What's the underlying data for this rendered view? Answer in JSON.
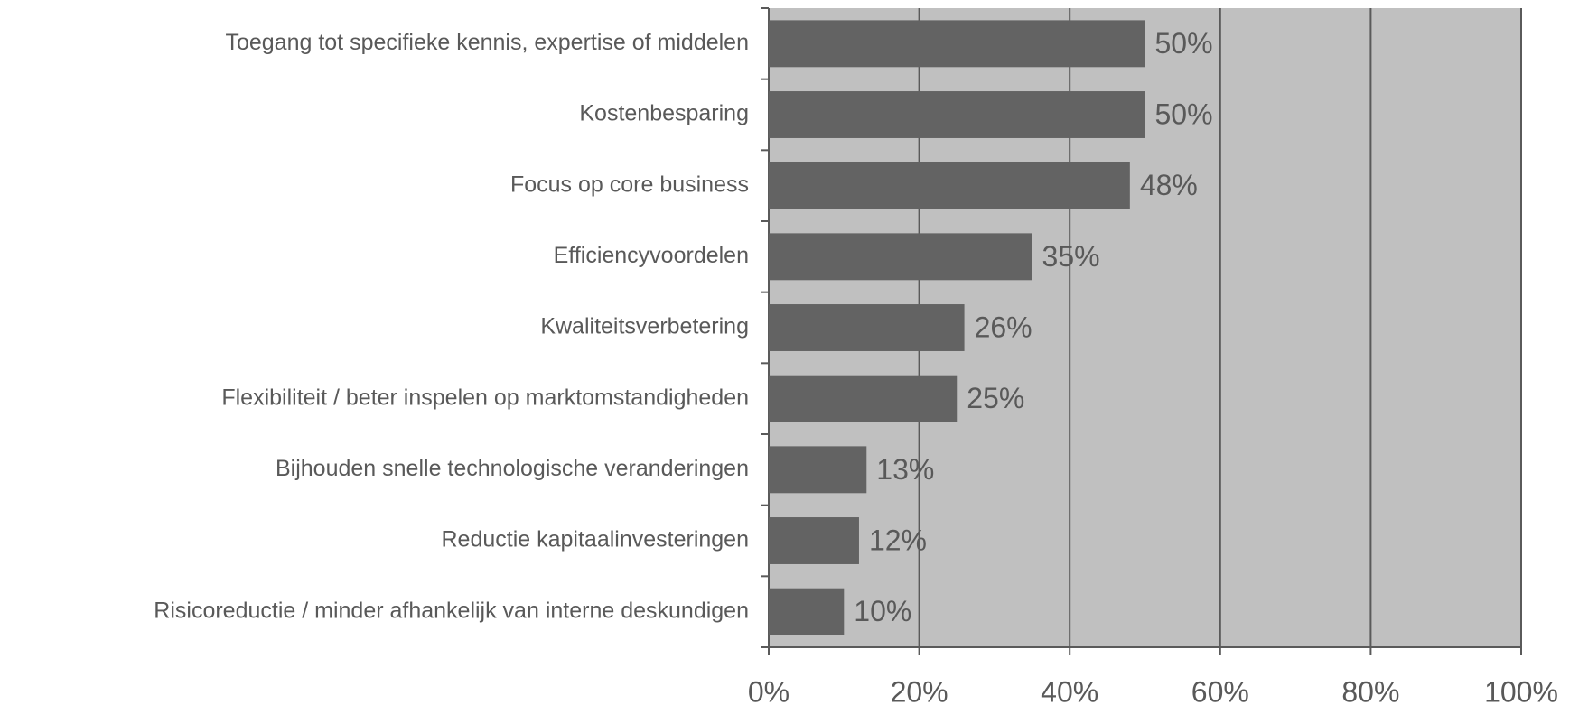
{
  "chart_data": {
    "type": "bar",
    "orientation": "horizontal",
    "categories": [
      "Toegang tot specifieke kennis, expertise of middelen",
      "Kostenbesparing",
      "Focus op core business",
      "Efficiencyvoordelen",
      "Kwaliteitsverbetering",
      "Flexibiliteit / beter inspelen op marktomstandigheden",
      "Bijhouden snelle technologische veranderingen",
      "Reductie kapitaalinvesteringen",
      "Risicoreductie / minder afhankelijk van interne deskundigen"
    ],
    "values": [
      50,
      50,
      48,
      35,
      26,
      25,
      13,
      12,
      10
    ],
    "value_labels": [
      "50%",
      "50%",
      "48%",
      "35%",
      "26%",
      "25%",
      "13%",
      "12%",
      "10%"
    ],
    "color": "#636363",
    "background": "#c0c0c0",
    "xlim": [
      0,
      100
    ],
    "xticks": [
      {
        "value": 0,
        "label": "0%"
      },
      {
        "value": 20,
        "label": "20%"
      },
      {
        "value": 40,
        "label": "40%"
      },
      {
        "value": 60,
        "label": "60%"
      },
      {
        "value": 80,
        "label": "80%"
      },
      {
        "value": 100,
        "label": "100%"
      }
    ],
    "grid": true
  }
}
